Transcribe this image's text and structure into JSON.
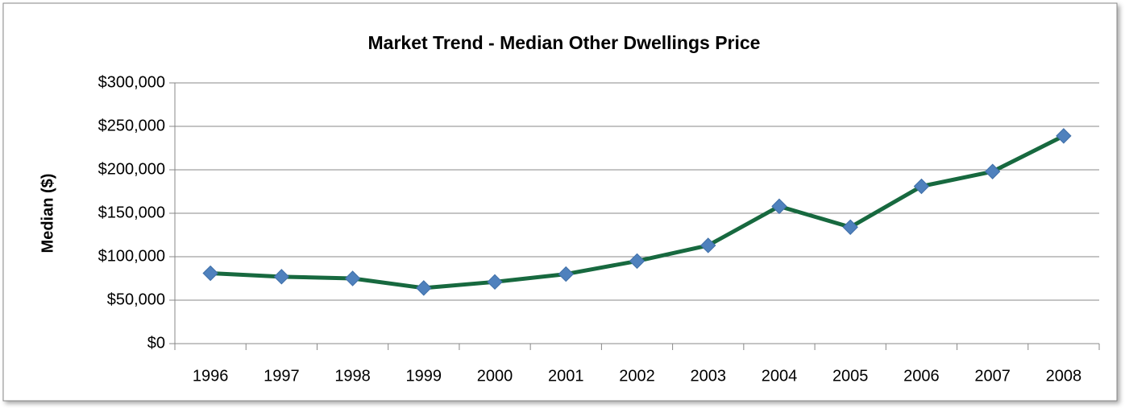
{
  "chart_data": {
    "type": "line",
    "title": "Market Trend - Median  Other Dwellings Price",
    "y_label": "Median ($)",
    "categories": [
      "1996",
      "1997",
      "1998",
      "1999",
      "2000",
      "2001",
      "2002",
      "2003",
      "2004",
      "2005",
      "2006",
      "2007",
      "2008"
    ],
    "values": [
      81000,
      77000,
      75000,
      64000,
      71000,
      80000,
      95000,
      113000,
      158000,
      134000,
      181000,
      198000,
      239000
    ],
    "color": "#17693f",
    "marker_color": "#4f81bd",
    "ylim": [
      0,
      300000
    ],
    "yticks": [
      {
        "value": 0,
        "label": "$0"
      },
      {
        "value": 50000,
        "label": "$50,000"
      },
      {
        "value": 100000,
        "label": "$100,000"
      },
      {
        "value": 150000,
        "label": "$150,000"
      },
      {
        "value": 200000,
        "label": "$200,000"
      },
      {
        "value": 250000,
        "label": "$250,000"
      },
      {
        "value": 300000,
        "label": "$300,000"
      }
    ],
    "grid": true
  }
}
